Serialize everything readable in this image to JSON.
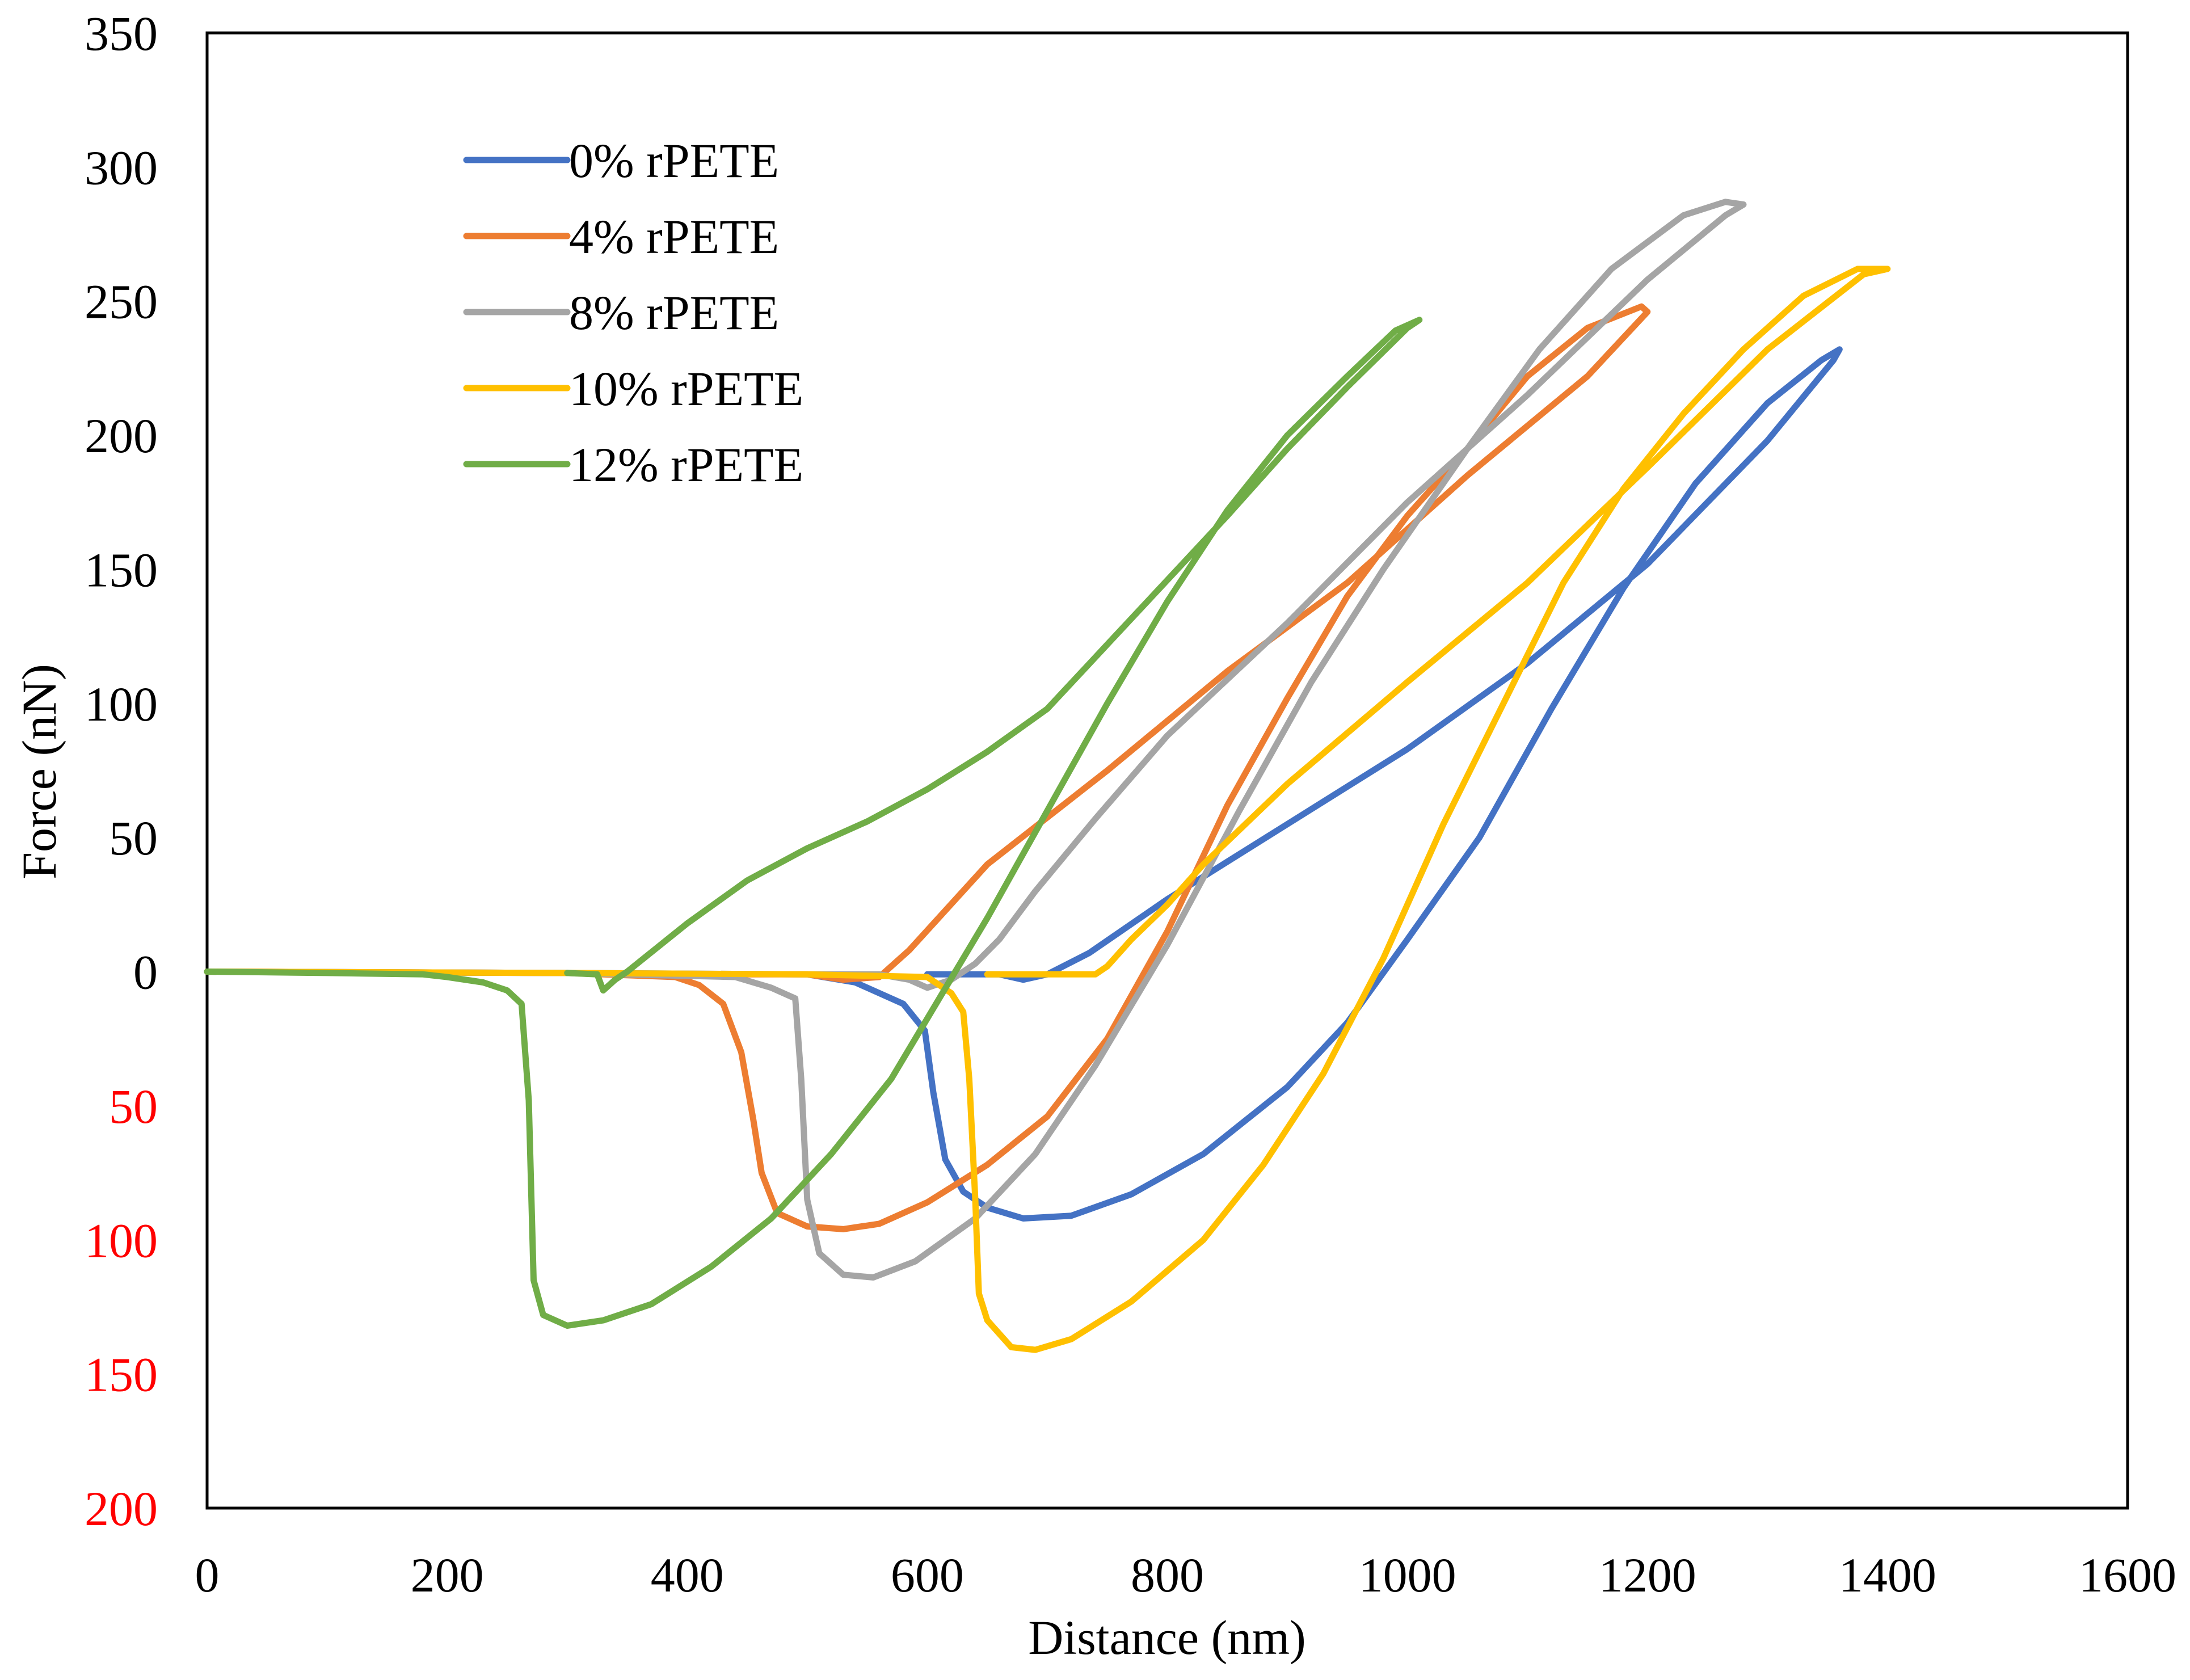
{
  "chart_data": {
    "type": "line",
    "title": "",
    "xlabel": "Distance (nm)",
    "ylabel": "Force (nN)",
    "xlim": [
      0,
      1600
    ],
    "ylim": [
      -200,
      350
    ],
    "x_ticks": [
      0,
      200,
      400,
      600,
      800,
      1000,
      1200,
      1400,
      1600
    ],
    "y_ticks": [
      {
        "value": 350,
        "label": "350",
        "color": "#000000"
      },
      {
        "value": 300,
        "label": "300",
        "color": "#000000"
      },
      {
        "value": 250,
        "label": "250",
        "color": "#000000"
      },
      {
        "value": 200,
        "label": "200",
        "color": "#000000"
      },
      {
        "value": 150,
        "label": "150",
        "color": "#000000"
      },
      {
        "value": 100,
        "label": "100",
        "color": "#000000"
      },
      {
        "value": 50,
        "label": "50",
        "color": "#000000"
      },
      {
        "value": 0,
        "label": "0",
        "color": "#000000"
      },
      {
        "value": -50,
        "label": "50",
        "color": "#ff0000"
      },
      {
        "value": -100,
        "label": "100",
        "color": "#ff0000"
      },
      {
        "value": -150,
        "label": "150",
        "color": "#ff0000"
      },
      {
        "value": -200,
        "label": "200",
        "color": "#ff0000"
      }
    ],
    "legend_position": "top-left",
    "series": [
      {
        "name": "0% rPETE",
        "color": "#4472C4",
        "points": [
          [
            0,
            0
          ],
          [
            300,
            -0.5
          ],
          [
            500,
            -1
          ],
          [
            540,
            -4
          ],
          [
            580,
            -12
          ],
          [
            598,
            -22
          ],
          [
            605,
            -45
          ],
          [
            615,
            -70
          ],
          [
            630,
            -82
          ],
          [
            650,
            -88
          ],
          [
            680,
            -92
          ],
          [
            720,
            -91
          ],
          [
            770,
            -83
          ],
          [
            830,
            -68
          ],
          [
            900,
            -43
          ],
          [
            950,
            -19
          ],
          [
            1000,
            12
          ],
          [
            1060,
            50
          ],
          [
            1120,
            98
          ],
          [
            1180,
            143
          ],
          [
            1240,
            182
          ],
          [
            1300,
            212
          ],
          [
            1345,
            228
          ],
          [
            1360,
            232
          ],
          [
            1355,
            228
          ],
          [
            1300,
            198
          ],
          [
            1200,
            152
          ],
          [
            1100,
            115
          ],
          [
            1000,
            83
          ],
          [
            900,
            55
          ],
          [
            800,
            27
          ],
          [
            735,
            7
          ],
          [
            700,
            -1
          ],
          [
            680,
            -3
          ],
          [
            660,
            -1
          ],
          [
            600,
            -1
          ]
        ]
      },
      {
        "name": "4% rPETE",
        "color": "#ED7D31",
        "points": [
          [
            0,
            0
          ],
          [
            300,
            -0.5
          ],
          [
            390,
            -2
          ],
          [
            410,
            -5
          ],
          [
            430,
            -12
          ],
          [
            445,
            -30
          ],
          [
            455,
            -55
          ],
          [
            462,
            -75
          ],
          [
            475,
            -90
          ],
          [
            500,
            -95
          ],
          [
            530,
            -96
          ],
          [
            560,
            -94
          ],
          [
            600,
            -86
          ],
          [
            650,
            -72
          ],
          [
            700,
            -54
          ],
          [
            750,
            -25
          ],
          [
            800,
            15
          ],
          [
            850,
            62
          ],
          [
            900,
            102
          ],
          [
            950,
            140
          ],
          [
            1000,
            170
          ],
          [
            1050,
            195
          ],
          [
            1100,
            222
          ],
          [
            1150,
            240
          ],
          [
            1195,
            248
          ],
          [
            1200,
            246
          ],
          [
            1150,
            222
          ],
          [
            1050,
            185
          ],
          [
            950,
            145
          ],
          [
            850,
            112
          ],
          [
            750,
            75
          ],
          [
            650,
            40
          ],
          [
            585,
            8
          ],
          [
            560,
            -2
          ],
          [
            530,
            -3
          ],
          [
            500,
            -1
          ],
          [
            450,
            -1
          ]
        ]
      },
      {
        "name": "8% rPETE",
        "color": "#A5A5A5",
        "points": [
          [
            0,
            0
          ],
          [
            300,
            -0.5
          ],
          [
            440,
            -2
          ],
          [
            470,
            -6
          ],
          [
            490,
            -10
          ],
          [
            495,
            -40
          ],
          [
            500,
            -85
          ],
          [
            510,
            -105
          ],
          [
            530,
            -113
          ],
          [
            555,
            -114
          ],
          [
            590,
            -108
          ],
          [
            640,
            -92
          ],
          [
            690,
            -68
          ],
          [
            740,
            -35
          ],
          [
            800,
            10
          ],
          [
            860,
            60
          ],
          [
            920,
            108
          ],
          [
            980,
            150
          ],
          [
            1050,
            195
          ],
          [
            1110,
            232
          ],
          [
            1170,
            262
          ],
          [
            1230,
            282
          ],
          [
            1265,
            287
          ],
          [
            1280,
            286
          ],
          [
            1265,
            282
          ],
          [
            1200,
            258
          ],
          [
            1100,
            215
          ],
          [
            1000,
            175
          ],
          [
            900,
            130
          ],
          [
            800,
            88
          ],
          [
            740,
            57
          ],
          [
            690,
            30
          ],
          [
            660,
            12
          ],
          [
            640,
            3
          ],
          [
            620,
            -3
          ],
          [
            600,
            -6
          ],
          [
            585,
            -3
          ],
          [
            560,
            -1
          ],
          [
            500,
            -1
          ]
        ]
      },
      {
        "name": "10% rPETE",
        "color": "#FFC000",
        "points": [
          [
            0,
            0
          ],
          [
            300,
            -0.5
          ],
          [
            500,
            -1
          ],
          [
            600,
            -2
          ],
          [
            620,
            -8
          ],
          [
            630,
            -15
          ],
          [
            635,
            -40
          ],
          [
            640,
            -85
          ],
          [
            643,
            -120
          ],
          [
            650,
            -130
          ],
          [
            670,
            -140
          ],
          [
            690,
            -141
          ],
          [
            720,
            -137
          ],
          [
            770,
            -123
          ],
          [
            830,
            -100
          ],
          [
            880,
            -72
          ],
          [
            930,
            -38
          ],
          [
            980,
            5
          ],
          [
            1030,
            55
          ],
          [
            1080,
            100
          ],
          [
            1130,
            145
          ],
          [
            1180,
            180
          ],
          [
            1230,
            208
          ],
          [
            1280,
            232
          ],
          [
            1330,
            252
          ],
          [
            1375,
            262
          ],
          [
            1400,
            262
          ],
          [
            1380,
            260
          ],
          [
            1300,
            232
          ],
          [
            1200,
            188
          ],
          [
            1100,
            145
          ],
          [
            1000,
            108
          ],
          [
            900,
            70
          ],
          [
            830,
            40
          ],
          [
            800,
            25
          ],
          [
            770,
            12
          ],
          [
            750,
            2
          ],
          [
            740,
            -1
          ],
          [
            650,
            -1
          ]
        ]
      },
      {
        "name": "12% rPETE",
        "color": "#70AD47",
        "points": [
          [
            0,
            0
          ],
          [
            100,
            -0.5
          ],
          [
            180,
            -1
          ],
          [
            200,
            -2
          ],
          [
            230,
            -4
          ],
          [
            250,
            -7
          ],
          [
            262,
            -12
          ],
          [
            268,
            -48
          ],
          [
            272,
            -115
          ],
          [
            280,
            -128
          ],
          [
            300,
            -132
          ],
          [
            330,
            -130
          ],
          [
            370,
            -124
          ],
          [
            420,
            -110
          ],
          [
            470,
            -92
          ],
          [
            520,
            -68
          ],
          [
            570,
            -40
          ],
          [
            610,
            -10
          ],
          [
            650,
            20
          ],
          [
            700,
            60
          ],
          [
            750,
            100
          ],
          [
            800,
            138
          ],
          [
            850,
            172
          ],
          [
            900,
            200
          ],
          [
            950,
            222
          ],
          [
            990,
            239
          ],
          [
            1010,
            243
          ],
          [
            1000,
            240
          ],
          [
            950,
            218
          ],
          [
            900,
            195
          ],
          [
            850,
            170
          ],
          [
            800,
            146
          ],
          [
            750,
            122
          ],
          [
            700,
            98
          ],
          [
            650,
            82
          ],
          [
            600,
            68
          ],
          [
            550,
            56
          ],
          [
            500,
            46
          ],
          [
            450,
            34
          ],
          [
            400,
            18
          ],
          [
            350,
            0
          ],
          [
            340,
            -3
          ],
          [
            330,
            -7
          ],
          [
            325,
            -1
          ],
          [
            300,
            -0.5
          ]
        ]
      }
    ]
  }
}
